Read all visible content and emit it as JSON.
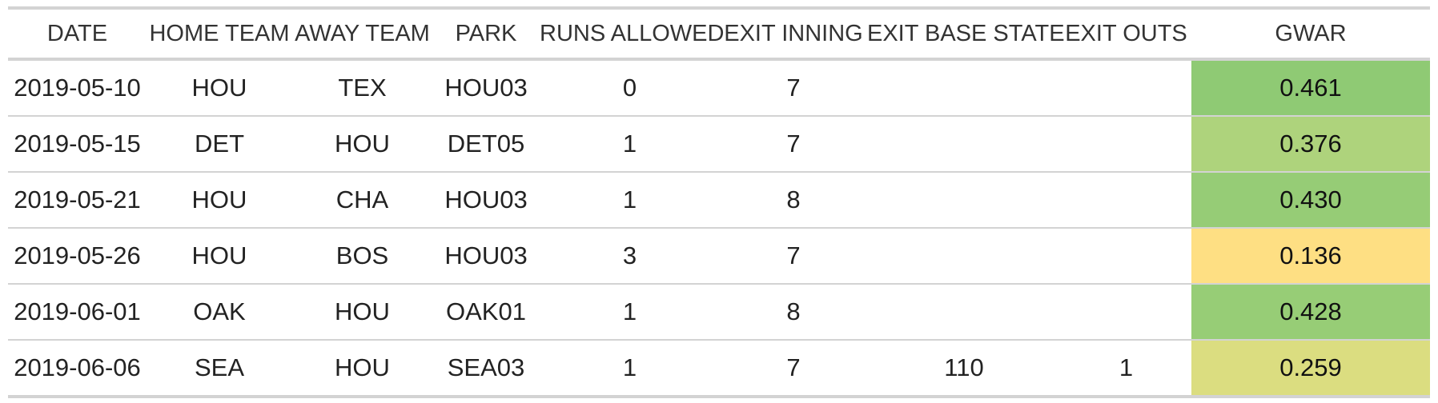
{
  "table": {
    "headers": [
      "DATE",
      "HOME TEAM",
      "AWAY TEAM",
      "PARK",
      "RUNS ALLOWED",
      "EXIT INNING",
      "EXIT BASE STATE",
      "EXIT OUTS",
      "GWAR"
    ],
    "rows": [
      [
        "2019-05-10",
        "HOU",
        "TEX",
        "HOU03",
        "0",
        "7",
        "",
        "",
        "0.461"
      ],
      [
        "2019-05-15",
        "DET",
        "HOU",
        "DET05",
        "1",
        "7",
        "",
        "",
        "0.376"
      ],
      [
        "2019-05-21",
        "HOU",
        "CHA",
        "HOU03",
        "1",
        "8",
        "",
        "",
        "0.430"
      ],
      [
        "2019-05-26",
        "HOU",
        "BOS",
        "HOU03",
        "3",
        "7",
        "",
        "",
        "0.136"
      ],
      [
        "2019-06-01",
        "OAK",
        "HOU",
        "OAK01",
        "1",
        "8",
        "",
        "",
        "0.428"
      ],
      [
        "2019-06-06",
        "SEA",
        "HOU",
        "SEA03",
        "1",
        "7",
        "110",
        "1",
        "0.259"
      ]
    ],
    "gwar_colors": [
      "#8fca74",
      "#aed37c",
      "#96cc76",
      "#fedf83",
      "#97cd76",
      "#dbdd80"
    ]
  }
}
